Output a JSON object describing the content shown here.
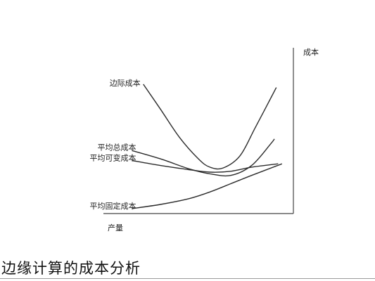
{
  "caption": "边缘计算的成本分析",
  "chart_data": {
    "type": "line",
    "ylabel": "成本",
    "xlabel": "产量",
    "xlim": [
      0,
      10
    ],
    "ylim": [
      0,
      10
    ],
    "grid": false,
    "series": [
      {
        "name": "边际成本",
        "x": [
          2.1,
          3.0,
          4.0,
          5.0,
          5.6,
          6.3,
          7.2,
          8.0,
          9.1
        ],
        "y": [
          7.8,
          6.3,
          4.6,
          3.3,
          2.8,
          2.75,
          3.5,
          5.2,
          7.6
        ]
      },
      {
        "name": "平均总成本",
        "x": [
          1.5,
          3.0,
          4.5,
          5.6,
          6.7,
          7.8,
          8.8,
          9.0
        ],
        "y": [
          3.8,
          3.3,
          2.7,
          2.4,
          2.3,
          2.9,
          4.2,
          4.5
        ]
      },
      {
        "name": "平均可变成本",
        "x": [
          1.5,
          3.0,
          4.5,
          5.6,
          6.7,
          7.8,
          9.2
        ],
        "y": [
          3.2,
          2.9,
          2.65,
          2.5,
          2.55,
          2.8,
          3.0
        ]
      },
      {
        "name": "平均固定成本",
        "x": [
          1.5,
          3.0,
          4.5,
          5.6,
          6.7,
          7.8,
          9.4
        ],
        "y": [
          0.3,
          0.55,
          0.9,
          1.3,
          1.8,
          2.3,
          3.0
        ]
      }
    ]
  }
}
